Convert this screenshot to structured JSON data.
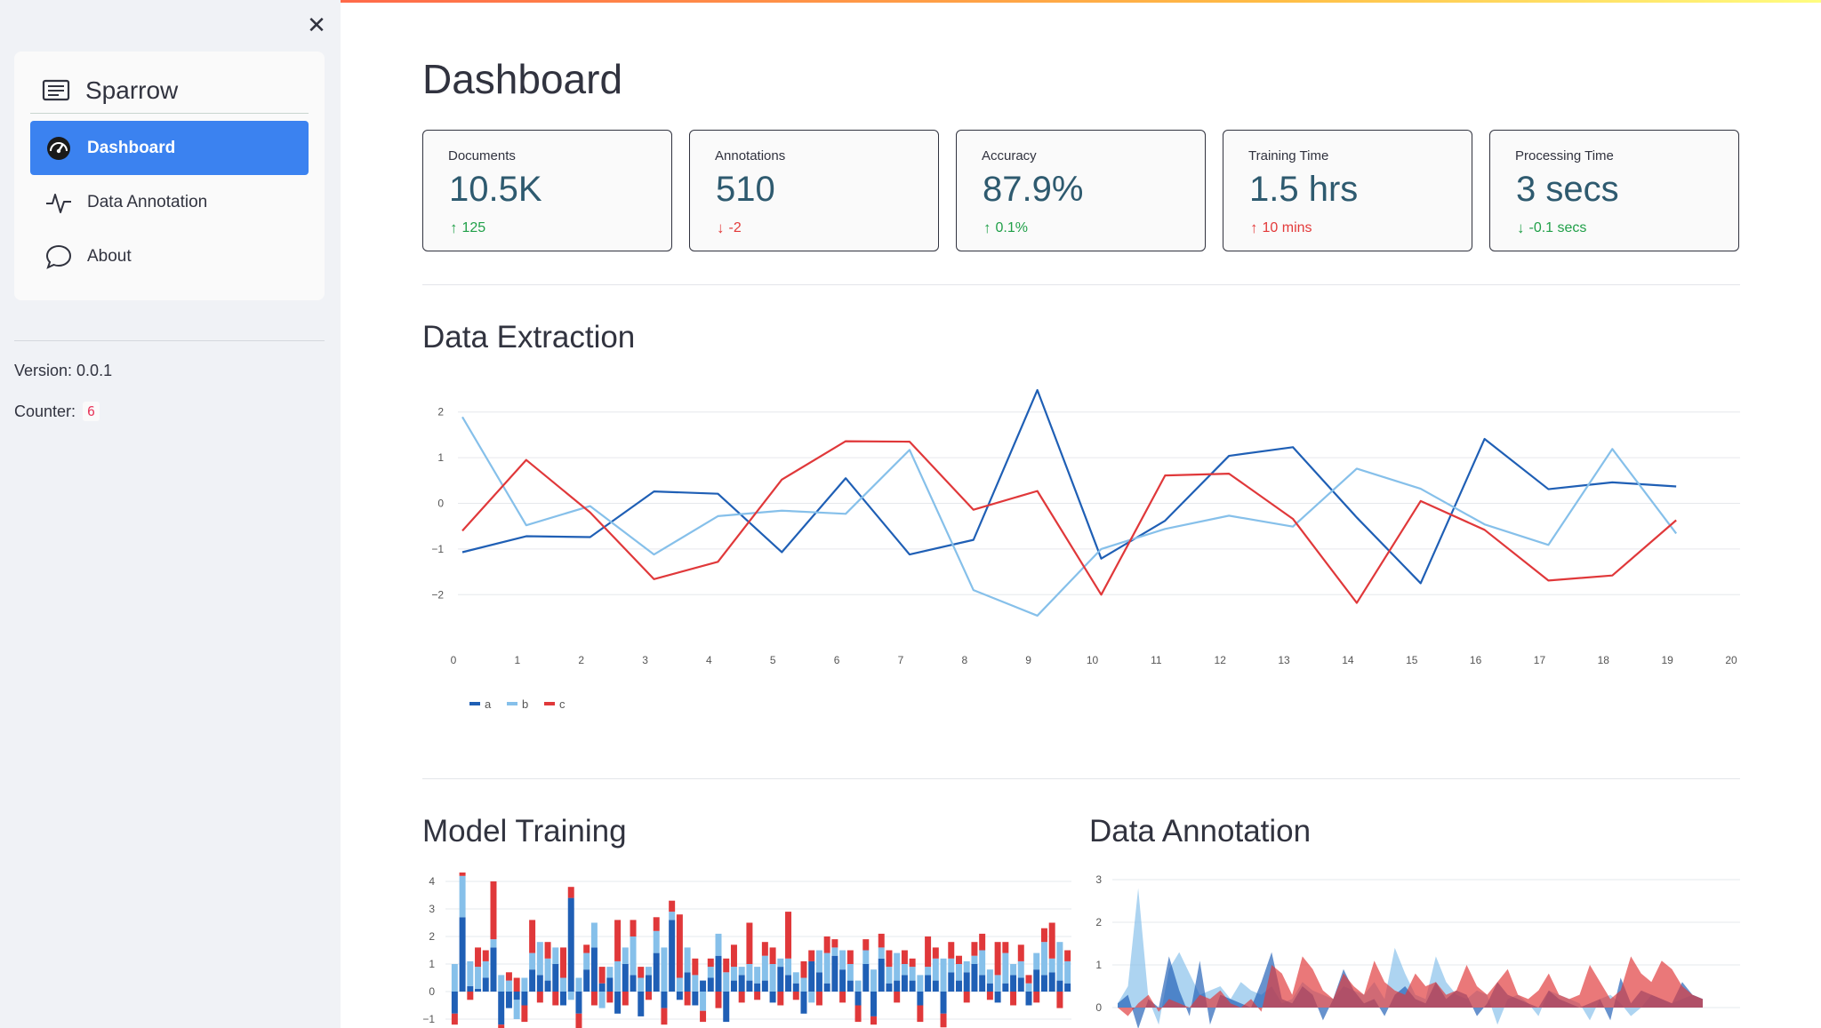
{
  "sidebar": {
    "brand": "Sparrow",
    "items": [
      {
        "label": "Dashboard",
        "icon": "speedometer-icon",
        "active": true
      },
      {
        "label": "Data Annotation",
        "icon": "activity-icon",
        "active": false
      },
      {
        "label": "About",
        "icon": "chat-bubble-icon",
        "active": false
      }
    ],
    "version": "Version: 0.0.1",
    "counter_label": "Counter:",
    "counter_value": "6"
  },
  "main": {
    "title": "Dashboard",
    "metrics": [
      {
        "label": "Documents",
        "value": "10.5K",
        "delta": "125",
        "direction": "up"
      },
      {
        "label": "Annotations",
        "value": "510",
        "delta": "-2",
        "direction": "down"
      },
      {
        "label": "Accuracy",
        "value": "87.9%",
        "delta": "0.1%",
        "direction": "up"
      },
      {
        "label": "Training Time",
        "value": "1.5 hrs",
        "delta": "10 mins",
        "direction": "up-bad"
      },
      {
        "label": "Processing Time",
        "value": "3 secs",
        "delta": "-0.1 secs",
        "direction": "down-good"
      }
    ],
    "sections": {
      "extraction": "Data Extraction",
      "training": "Model Training",
      "annotation": "Data Annotation"
    }
  },
  "colors": {
    "a": "#1f5fb5",
    "b": "#86c0ea",
    "c": "#e0383a",
    "accent": "#3b82f0"
  },
  "chart_data": [
    {
      "type": "line",
      "title": "",
      "x": [
        0,
        1,
        2,
        3,
        4,
        5,
        6,
        7,
        8,
        9,
        10,
        11,
        12,
        13,
        14,
        15,
        16,
        17,
        18,
        19
      ],
      "xlim": [
        0,
        20
      ],
      "ylim": [
        -2.5,
        2.5
      ],
      "xticks": [
        0,
        1,
        2,
        3,
        4,
        5,
        6,
        7,
        8,
        9,
        10,
        11,
        12,
        13,
        14,
        15,
        16,
        17,
        18,
        19,
        20
      ],
      "yticks": [
        -2,
        -1,
        0,
        1,
        2
      ],
      "legend_position": "bottom-left",
      "series": [
        {
          "name": "a",
          "values": [
            -1.07,
            -0.72,
            -0.74,
            0.26,
            0.21,
            -1.07,
            0.55,
            -1.12,
            -0.8,
            2.48,
            -1.21,
            -0.38,
            1.04,
            1.23,
            -0.31,
            -1.75,
            1.41,
            0.31,
            0.46,
            0.37
          ]
        },
        {
          "name": "b",
          "values": [
            1.89,
            -0.48,
            -0.06,
            -1.12,
            -0.28,
            -0.16,
            -0.23,
            1.17,
            -1.9,
            -2.46,
            -1.0,
            -0.56,
            -0.27,
            -0.51,
            0.76,
            0.32,
            -0.46,
            -0.91,
            1.19,
            -0.66
          ]
        },
        {
          "name": "c",
          "values": [
            -0.6,
            0.95,
            -0.2,
            -1.66,
            -1.28,
            0.52,
            1.36,
            1.35,
            -0.14,
            0.27,
            -2.0,
            0.61,
            0.65,
            -0.34,
            -2.18,
            0.05,
            -0.58,
            -1.69,
            -1.58,
            -0.37
          ]
        }
      ]
    },
    {
      "type": "bar",
      "title": "",
      "stacked": true,
      "yticks": [
        -1,
        0,
        1,
        2,
        3,
        4
      ],
      "ylim": [
        -1.3,
        4.3
      ],
      "series": [
        {
          "name": "a",
          "values": [
            -0.8,
            2.7,
            0.2,
            0.1,
            0.5,
            1.6,
            -1.2,
            -0.6,
            -0.3,
            -0.5,
            0.8,
            0.6,
            0.4,
            1.0,
            -0.5,
            3.4,
            -0.8,
            0.8,
            1.6,
            0.3,
            0.5,
            -0.8,
            1.0,
            0.6,
            -0.9,
            0.6,
            1.4,
            -0.6,
            2.6,
            -0.3,
            0.7,
            -0.5,
            0.4,
            0.5,
            1.3,
            -1.1,
            0.4,
            0.6,
            0.4,
            0.3,
            0.4,
            -0.4,
            0.9,
            0.6,
            0.3,
            -0.8,
            1.1,
            0.7,
            0.3,
            1.3,
            0.8,
            0.4,
            -0.5,
            1.0,
            -0.9,
            1.2,
            0.3,
            0.4,
            0.6,
            0.4,
            -0.5,
            0.6,
            0.4,
            -0.8,
            0.7,
            0.4,
            0.7,
            1.0,
            0.6,
            0.3,
            -0.4,
            0.3,
            0.6,
            0.5,
            -0.5,
            0.8,
            0.6,
            0.7,
            0.4,
            0.3
          ]
        },
        {
          "name": "b",
          "values": [
            1.0,
            1.5,
            0.9,
            0.8,
            0.6,
            0.3,
            0.6,
            0.4,
            -0.7,
            0.5,
            0.6,
            1.2,
            0.8,
            0.6,
            0.5,
            -0.3,
            0.5,
            0.6,
            0.9,
            -0.6,
            0.4,
            1.1,
            0.6,
            1.4,
            0.5,
            0.3,
            0.8,
            1.6,
            0.3,
            0.5,
            0.9,
            0.6,
            -0.7,
            0.4,
            0.8,
            0.7,
            0.5,
            0.3,
            0.6,
            0.6,
            0.9,
            1.0,
            0.3,
            0.6,
            0.4,
            0.5,
            -0.4,
            0.8,
            1.1,
            0.3,
            0.7,
            0.6,
            0.4,
            0.5,
            0.8,
            0.4,
            0.6,
            1.0,
            0.4,
            0.5,
            0.6,
            0.3,
            0.8,
            1.2,
            0.5,
            0.6,
            0.4,
            0.3,
            0.9,
            0.5,
            0.6,
            1.1,
            0.4,
            0.6,
            0.3,
            0.6,
            1.2,
            0.5,
            1.4,
            0.8
          ]
        },
        {
          "name": "c",
          "values": [
            -0.4,
            0.6,
            -0.3,
            0.7,
            0.4,
            2.1,
            -0.5,
            0.3,
            0.5,
            -0.6,
            1.2,
            -0.4,
            0.6,
            -0.5,
            1.1,
            0.4,
            -0.6,
            0.3,
            -0.5,
            0.6,
            -0.4,
            1.5,
            -0.5,
            0.6,
            0.4,
            -0.3,
            0.5,
            -0.6,
            0.4,
            2.3,
            -0.5,
            0.6,
            -0.4,
            0.3,
            -0.6,
            0.5,
            0.8,
            -0.4,
            1.5,
            -0.3,
            0.5,
            0.6,
            -0.5,
            1.7,
            -0.3,
            0.6,
            0.4,
            -0.5,
            0.6,
            0.3,
            -0.4,
            0.5,
            -0.6,
            0.4,
            -0.3,
            0.5,
            0.6,
            -0.4,
            0.5,
            0.3,
            -0.6,
            1.1,
            0.4,
            -0.5,
            0.6,
            0.3,
            -0.4,
            0.5,
            0.6,
            -0.3,
            1.2,
            0.4,
            -0.5,
            0.6,
            0.3,
            -0.4,
            0.5,
            1.3,
            -0.6,
            0.4
          ]
        }
      ]
    },
    {
      "type": "area",
      "title": "",
      "yticks": [
        0,
        1,
        2,
        3
      ],
      "ylim": [
        -0.6,
        3.2
      ],
      "series": [
        {
          "name": "a",
          "values": [
            0.1,
            0.3,
            -0.5,
            0.2,
            0.0,
            1.2,
            0.4,
            -0.2,
            1.1,
            -0.4,
            0.3,
            0.2,
            0.1,
            0.0,
            0.6,
            1.3,
            0.2,
            0.1,
            0.5,
            0.3,
            -0.3,
            0.2,
            0.9,
            0.4,
            0.1,
            0.2,
            -0.2,
            0.3,
            0.5,
            0.2,
            0.1,
            0.6,
            0.2,
            0.4,
            0.3,
            -0.2,
            0.1,
            0.6,
            0.3,
            0.2,
            0.1,
            0.0,
            0.4,
            0.2,
            0.1,
            0.0,
            0.1,
            0.2,
            -0.3,
            0.7,
            0.1,
            0.4,
            0.3,
            0.2,
            0.1,
            0.6,
            0.3,
            0.2
          ]
        },
        {
          "name": "b",
          "values": [
            0.1,
            0.5,
            2.8,
            0.2,
            -0.4,
            0.9,
            1.3,
            0.8,
            0.3,
            0.4,
            0.5,
            0.2,
            0.6,
            0.4,
            0.3,
            0.5,
            0.1,
            0.2,
            0.6,
            0.4,
            0.3,
            0.2,
            0.5,
            0.4,
            0.3,
            0.6,
            0.2,
            1.4,
            0.8,
            0.3,
            0.2,
            1.2,
            0.6,
            0.3,
            0.2,
            0.4,
            0.3,
            -0.4,
            0.2,
            0.3,
            0.1,
            -0.2,
            0.4,
            0.3,
            0.2,
            0.1,
            -0.3,
            0.2,
            0.3,
            0.1,
            -0.2,
            0.0,
            0.3,
            0.2,
            0.1,
            0.2,
            0.3,
            0.2
          ]
        },
        {
          "name": "c",
          "values": [
            0.0,
            -0.2,
            0.1,
            0.3,
            -0.1,
            0.2,
            0.1,
            0.0,
            0.3,
            0.2,
            0.4,
            0.1,
            0.0,
            0.2,
            -0.1,
            1.0,
            0.8,
            0.3,
            1.2,
            0.9,
            0.4,
            0.2,
            0.8,
            0.5,
            0.3,
            1.1,
            0.6,
            0.4,
            0.3,
            0.8,
            0.5,
            0.6,
            0.3,
            0.4,
            1.0,
            0.5,
            0.3,
            0.6,
            0.9,
            0.3,
            0.2,
            0.4,
            0.8,
            0.3,
            0.2,
            0.3,
            1.0,
            0.6,
            0.2,
            0.4,
            1.2,
            0.8,
            0.6,
            1.1,
            0.9,
            0.5,
            0.3,
            0.2
          ]
        }
      ]
    }
  ]
}
